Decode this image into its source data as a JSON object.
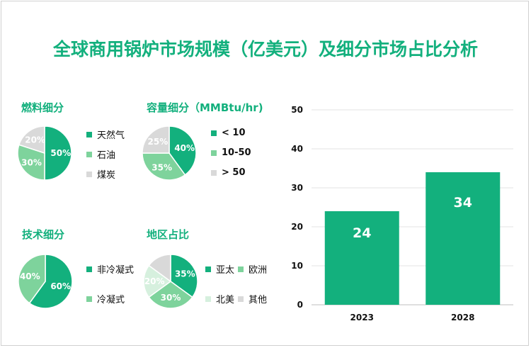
{
  "title": "全球商用锅炉市场规模（亿美元）及细分市场占比分析",
  "colors": {
    "green_dark": "#13b07d",
    "green_light": "#7ed39c",
    "gray_light": "#d9d9d9",
    "green_pale": "#d6f0de"
  },
  "chart_data": [
    {
      "type": "pie",
      "title": "燃料细分",
      "slices": [
        {
          "name": "天然气",
          "value": 50,
          "label": "50%",
          "color": "#13b07d"
        },
        {
          "name": "石油",
          "value": 30,
          "label": "30%",
          "color": "#7ed39c"
        },
        {
          "name": "煤炭",
          "value": 20,
          "label": "20%",
          "color": "#d9d9d9"
        }
      ]
    },
    {
      "type": "pie",
      "title": "容量细分（MMBtu/hr)",
      "slices": [
        {
          "name": "< 10",
          "value": 40,
          "label": "40%",
          "color": "#13b07d"
        },
        {
          "name": "10-50",
          "value": 35,
          "label": "35%",
          "color": "#7ed39c"
        },
        {
          "name": "> 50",
          "value": 25,
          "label": "25%",
          "color": "#d9d9d9"
        }
      ]
    },
    {
      "type": "pie",
      "title": "技术细分",
      "slices": [
        {
          "name": "非冷凝式",
          "value": 60,
          "label": "60%",
          "color": "#13b07d"
        },
        {
          "name": "冷凝式",
          "value": 40,
          "label": "40%",
          "color": "#7ed39c"
        }
      ]
    },
    {
      "type": "pie",
      "title": "地区占比",
      "slices": [
        {
          "name": "亚太",
          "value": 35,
          "label": "35%",
          "color": "#13b07d"
        },
        {
          "name": "欧洲",
          "value": 30,
          "label": "30%",
          "color": "#7ed39c"
        },
        {
          "name": "北美",
          "value": 20,
          "label": "20%",
          "color": "#d6f0de"
        },
        {
          "name": "其他",
          "value": 15,
          "label": "",
          "color": "#d9d9d9"
        }
      ]
    },
    {
      "type": "bar",
      "categories": [
        "2023",
        "2028"
      ],
      "values": [
        24,
        34
      ],
      "data_labels": [
        "24",
        "34"
      ],
      "ylim": [
        0,
        50
      ],
      "yticks": [
        "0",
        "10",
        "20",
        "30",
        "40",
        "50"
      ],
      "grid": true,
      "color": "#13b07d"
    }
  ]
}
